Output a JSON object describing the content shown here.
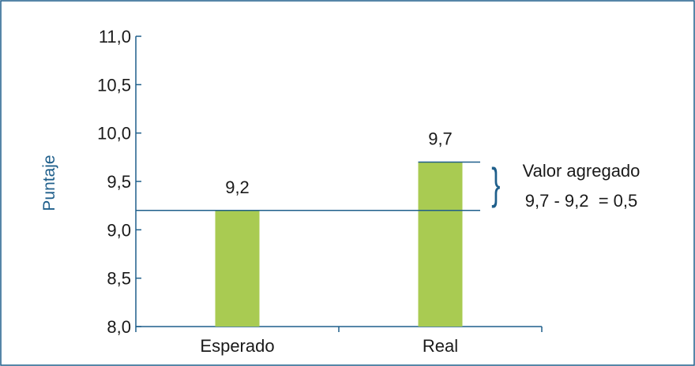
{
  "colors": {
    "axis": "#1f5f8b",
    "text": "#1a1a1a",
    "bar": "#a9cb52",
    "border": "#1f5f8b",
    "ylabel": "#1f5f8b"
  },
  "chart_data": {
    "type": "bar",
    "title": "",
    "xlabel": "",
    "ylabel": "Puntaje",
    "categories": [
      "Esperado",
      "Real"
    ],
    "values": [
      9.2,
      9.7
    ],
    "value_labels": [
      "9,2",
      "9,7"
    ],
    "ylim": [
      8.0,
      11.0
    ],
    "yticks": [
      8.0,
      8.5,
      9.0,
      9.5,
      10.0,
      10.5,
      11.0
    ],
    "ytick_labels": [
      "8,0",
      "8,5",
      "9,0",
      "9,5",
      "10,0",
      "10,5",
      "11,0"
    ],
    "grid": false,
    "reference_lines": [
      9.2,
      9.7
    ],
    "annotation": {
      "line1": "Valor agregado",
      "line2": "9,7 - 9,2  = 0,5"
    }
  }
}
